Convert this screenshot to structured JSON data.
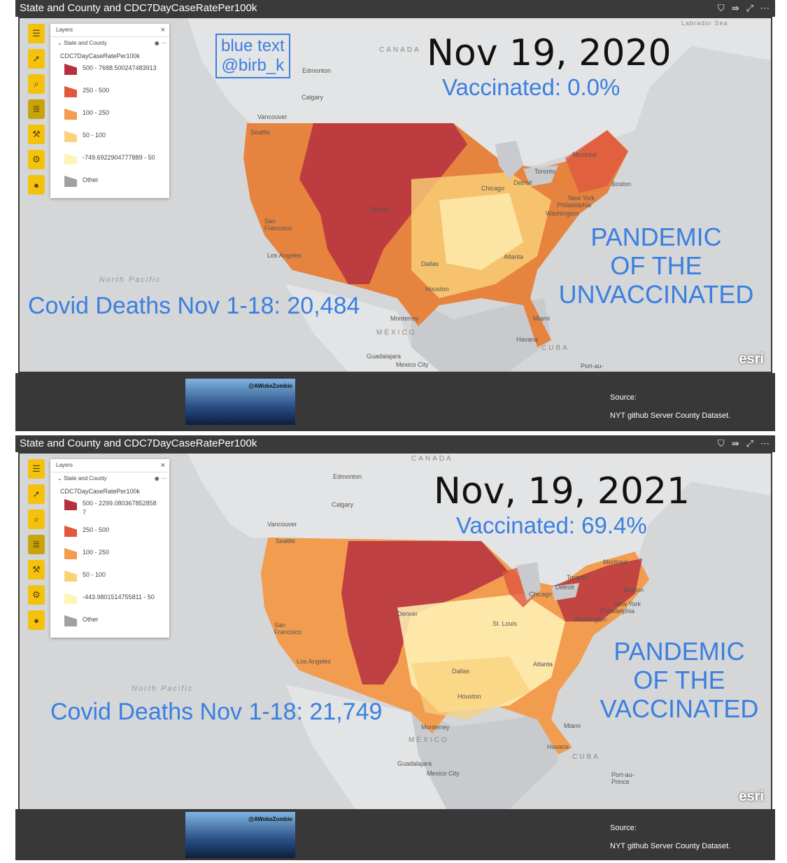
{
  "colors": {
    "accent_text": "#3a7fe0",
    "tool_yellow": "#f4c20d",
    "bin_500_plus": "#b5303f",
    "bin_250_500": "#e0583e",
    "bin_100_250": "#f29c50",
    "bin_50_100": "#fad27a",
    "bin_low": "#fff4b8",
    "bin_other": "#a0a0a0"
  },
  "panels": [
    {
      "title": "State and County and CDC7DayCaseRatePer100k",
      "toolbar_icons": [
        "menu-icon",
        "pointer-icon",
        "search-icon",
        "legend-icon",
        "wrench-icon",
        "gear-icon",
        "user-icon"
      ],
      "layers": {
        "header": "Layers",
        "layer_name": "State and County",
        "field": "CDC7DayCaseRatePer100k",
        "legend": [
          {
            "label": "500 - 7688.500247483913"
          },
          {
            "label": "250 - 500"
          },
          {
            "label": "100 - 250"
          },
          {
            "label": "50 - 100"
          },
          {
            "label": "-749.6922904777889 - 50"
          },
          {
            "label": "Other"
          }
        ]
      },
      "date": "Nov 19, 2020",
      "vaccinated": "Vaccinated: 0.0%",
      "pandemic": [
        "PANDEMIC",
        "OF THE",
        "UNVACCINATED"
      ],
      "deaths": "Covid Deaths Nov 1-18: 20,484",
      "credit": [
        "blue text",
        "@birb_k"
      ],
      "cities": [
        "Edmonton",
        "Calgary",
        "Vancouver",
        "Seattle",
        "San Francisco",
        "Los Angeles",
        "Denver",
        "Dallas",
        "Houston",
        "Chicago",
        "Detroit",
        "Toronto",
        "Montreal",
        "Boston",
        "New York",
        "Philadelphia",
        "Washington",
        "Atlanta",
        "Miami",
        "Monterrey",
        "Havana",
        "Guadalajara",
        "Mexico City",
        "Port-au-"
      ],
      "places": [
        "CANADA",
        "MÉXICO",
        "CUBA",
        "Labrador Sea"
      ],
      "ocean": "North Pacific",
      "brand": "esri",
      "image_tag": "@AWokeZombie",
      "source_label": "Source:",
      "source_text": "NYT github Server County Dataset."
    },
    {
      "title": "State and County and CDC7DayCaseRatePer100k",
      "toolbar_icons": [
        "menu-icon",
        "pointer-icon",
        "search-icon",
        "legend-icon",
        "wrench-icon",
        "gear-icon",
        "user-icon"
      ],
      "layers": {
        "header": "Layers",
        "layer_name": "State and County",
        "field": "CDC7DayCaseRatePer100k",
        "legend": [
          {
            "label": "500 - 2299.0803678528587"
          },
          {
            "label": "250 - 500"
          },
          {
            "label": "100 - 250"
          },
          {
            "label": "50 - 100"
          },
          {
            "label": "-443.9801514755811 - 50"
          },
          {
            "label": "Other"
          }
        ]
      },
      "date": "Nov, 19, 2021",
      "vaccinated": "Vaccinated: 69.4%",
      "pandemic": [
        "PANDEMIC",
        "OF THE",
        "VACCINATED"
      ],
      "deaths": "Covid Deaths Nov 1-18: 21,749",
      "cities": [
        "Edmonton",
        "Calgary",
        "Vancouver",
        "Seattle",
        "San Francisco",
        "Los Angeles",
        "Denver",
        "Dallas",
        "Houston",
        "St. Louis",
        "Chicago",
        "Detroit",
        "Toronto",
        "Montreal",
        "Boston",
        "New York",
        "Philadelphia",
        "Washington",
        "Atlanta",
        "Miami",
        "Monterrey",
        "Havana",
        "Guadalajara",
        "Mexico City",
        "Port-au-Prince"
      ],
      "places": [
        "CANADA",
        "MÉXICO",
        "CUBA"
      ],
      "ocean": "North Pacific",
      "brand": "esri",
      "image_tag": "@AWokeZombie",
      "source_label": "Source:",
      "source_text": "NYT github Server County Dataset."
    }
  ]
}
